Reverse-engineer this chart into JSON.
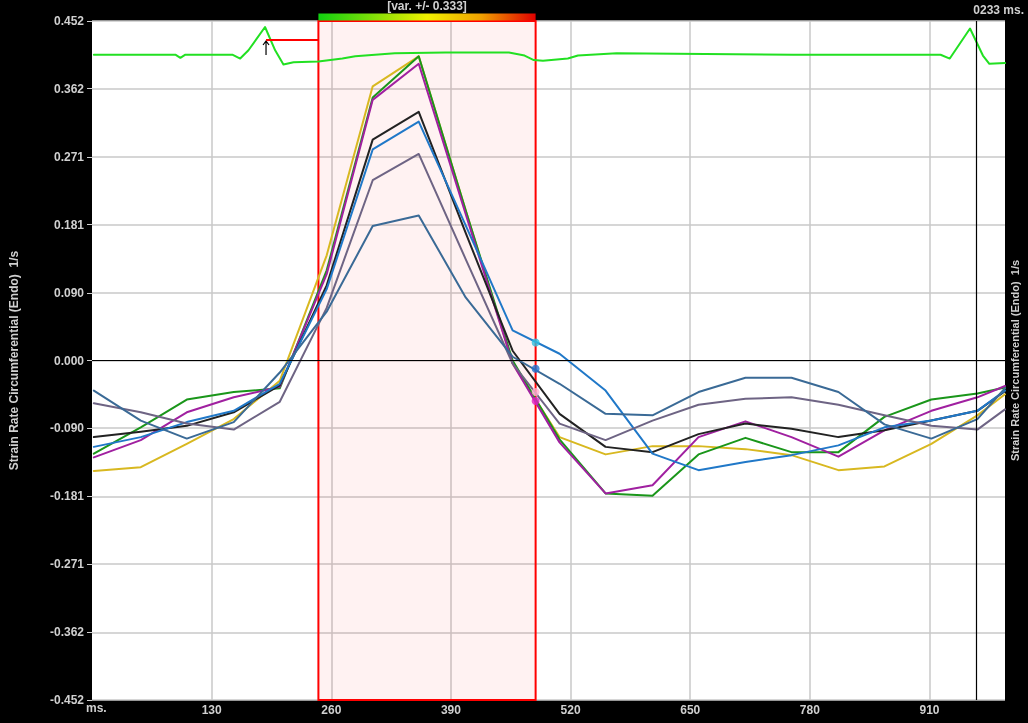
{
  "chart_data": {
    "type": "line",
    "ylabel": "Strain Rate Circumferential (Endo)  1/s",
    "y2label": "Strain Rate Circumferential (Endo)  1/s",
    "xlabel": "ms.",
    "annotations": [
      "[var. +/- 0.333]",
      "0233 ms."
    ],
    "x": [
      2,
      53,
      103,
      154,
      204,
      255,
      305,
      355,
      406,
      457,
      508,
      558,
      609,
      659,
      710,
      760,
      811,
      861,
      912,
      962,
      992
    ],
    "xlim": [
      0,
      992
    ],
    "xticks": [
      130,
      260,
      390,
      520,
      650,
      780,
      910
    ],
    "ylim": [
      -0.452,
      0.452
    ],
    "yticks": [
      0.452,
      0.362,
      0.271,
      0.181,
      {
        "value": 0.09,
        "label": "0.090"
      },
      {
        "value": 0,
        "label": "0.000"
      },
      {
        "value": -0.09,
        "label": "-0.090"
      },
      -0.181,
      -0.271,
      -0.362,
      -0.452
    ],
    "grid": true,
    "marker": "none",
    "line_style": "solid",
    "series": [
      {
        "color": "#22e022",
        "x": [
          2,
          91,
          96,
          101,
          153,
          161,
          170,
          188,
          199,
          208,
          219,
          246,
          272,
          286,
          329,
          384,
          453,
          470,
          480,
          490,
          517,
          528,
          570,
          762,
          922,
          932,
          954,
          968,
          975,
          992
        ],
        "values": [
          0.407,
          0.407,
          0.403,
          0.407,
          0.407,
          0.402,
          0.413,
          0.444,
          0.413,
          0.394,
          0.397,
          0.398,
          0.402,
          0.405,
          0.409,
          0.41,
          0.41,
          0.406,
          0.4,
          0.399,
          0.402,
          0.406,
          0.409,
          0.407,
          0.407,
          0.402,
          0.442,
          0.406,
          0.395,
          0.396
        ]
      },
      {
        "color": "#d8b820",
        "values": [
          -0.147,
          -0.142,
          -0.111,
          -0.078,
          -0.027,
          0.14,
          0.365,
          0.405,
          0.2,
          -0.004,
          -0.102,
          -0.125,
          -0.114,
          -0.114,
          -0.118,
          -0.126,
          -0.146,
          -0.141,
          -0.111,
          -0.073,
          -0.045
        ]
      },
      {
        "color": "#1a961a",
        "values": [
          -0.124,
          -0.089,
          -0.052,
          -0.042,
          -0.037,
          0.12,
          0.35,
          0.405,
          0.2,
          0.0,
          -0.105,
          -0.177,
          -0.18,
          -0.125,
          -0.103,
          -0.122,
          -0.122,
          -0.075,
          -0.052,
          -0.044,
          -0.036
        ]
      },
      {
        "color": "#a020a0",
        "values": [
          -0.129,
          -0.106,
          -0.069,
          -0.049,
          -0.035,
          0.115,
          0.347,
          0.395,
          0.195,
          -0.004,
          -0.109,
          -0.177,
          -0.166,
          -0.102,
          -0.081,
          -0.102,
          -0.128,
          -0.093,
          -0.067,
          -0.049,
          -0.034
        ]
      },
      {
        "color": "#222222",
        "values": [
          -0.102,
          -0.095,
          -0.087,
          -0.069,
          -0.033,
          0.1,
          0.294,
          0.331,
          0.17,
          0.013,
          -0.071,
          -0.115,
          -0.122,
          -0.098,
          -0.084,
          -0.091,
          -0.102,
          -0.093,
          -0.08,
          -0.067,
          -0.041
        ]
      },
      {
        "color": "#2078c8",
        "values": [
          -0.115,
          -0.102,
          -0.082,
          -0.067,
          -0.031,
          0.095,
          0.281,
          0.318,
          0.18,
          0.04,
          0.009,
          -0.04,
          -0.124,
          -0.146,
          -0.135,
          -0.126,
          -0.113,
          -0.089,
          -0.08,
          -0.067,
          -0.04
        ]
      },
      {
        "color": "#6e6484",
        "values": [
          -0.057,
          -0.069,
          -0.084,
          -0.092,
          -0.055,
          0.07,
          0.24,
          0.275,
          0.135,
          -0.004,
          -0.084,
          -0.106,
          -0.08,
          -0.059,
          -0.051,
          -0.049,
          -0.059,
          -0.073,
          -0.087,
          -0.092,
          -0.065
        ]
      },
      {
        "color": "#3a6a96",
        "values": [
          -0.04,
          -0.08,
          -0.104,
          -0.082,
          -0.016,
          0.065,
          0.179,
          0.193,
          0.084,
          0.005,
          -0.031,
          -0.071,
          -0.073,
          -0.042,
          -0.023,
          -0.023,
          -0.042,
          -0.085,
          -0.104,
          -0.078,
          -0.037
        ]
      },
      {
        "type": "scatter",
        "marker": "circle",
        "x": [
          482,
          482,
          482,
          482
        ],
        "values": [
          0.024,
          -0.011,
          -0.042,
          -0.054
        ],
        "colors": [
          "#30c0e0",
          "#2070d0",
          "#ffb0d0",
          "#e020c0"
        ]
      }
    ],
    "ref_lines": [
      {
        "axis": "y",
        "value": 0,
        "color": "#000000"
      },
      {
        "axis": "x",
        "value": 961,
        "color": "#000000"
      }
    ],
    "bands": [
      {
        "axis": "x",
        "from": 246,
        "to": 482,
        "color": "#ff0000"
      }
    ]
  }
}
